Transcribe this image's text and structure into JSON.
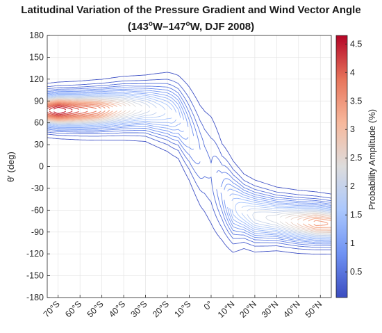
{
  "chart_data": {
    "type": "contour",
    "title_line1": "Latitudinal Variation of the Pressure Gradient and Wind Vector Angle",
    "title_line2_prefix": "(143",
    "title_sup1": "o",
    "title_line2_mid": "W–147",
    "title_sup2": "o",
    "title_line2_suffix": "W,  DJF 2008)",
    "ylabel": "θ' (deg)",
    "colorbar_label": "Probability Amplitude (%)",
    "x_range": [
      -75,
      55
    ],
    "y_range": [
      -180,
      180
    ],
    "x_ticks": [
      {
        "value": -70,
        "label": "70°S"
      },
      {
        "value": -60,
        "label": "60°S"
      },
      {
        "value": -50,
        "label": "50°S"
      },
      {
        "value": -40,
        "label": "40°S"
      },
      {
        "value": -30,
        "label": "30°S"
      },
      {
        "value": -20,
        "label": "20°S"
      },
      {
        "value": -10,
        "label": "10°S"
      },
      {
        "value": 0,
        "label": "0°"
      },
      {
        "value": 10,
        "label": "10°N"
      },
      {
        "value": 20,
        "label": "20°N"
      },
      {
        "value": 30,
        "label": "30°N"
      },
      {
        "value": 40,
        "label": "40°N"
      },
      {
        "value": 50,
        "label": "50°N"
      }
    ],
    "y_ticks": [
      180,
      150,
      120,
      90,
      60,
      30,
      0,
      -30,
      -60,
      -90,
      -120,
      -150,
      -180
    ],
    "colorbar_range": [
      0.05,
      4.65
    ],
    "colorbar_ticks": [
      0.5,
      1,
      1.5,
      2,
      2.5,
      3,
      3.5,
      4,
      4.5
    ],
    "colormap": [
      "#3b4cc0",
      "#6f92f3",
      "#aac7fd",
      "#dddcdc",
      "#f7b89c",
      "#e7745b",
      "#b40426"
    ],
    "grid": true,
    "ridge_center_deg": [
      {
        "lat": -75,
        "angle": 77
      },
      {
        "lat": -60,
        "angle": 77
      },
      {
        "lat": -50,
        "angle": 78
      },
      {
        "lat": -40,
        "angle": 80
      },
      {
        "lat": -30,
        "angle": 80
      },
      {
        "lat": -20,
        "angle": 75
      },
      {
        "lat": -15,
        "angle": 68
      },
      {
        "lat": -10,
        "angle": 45
      },
      {
        "lat": -5,
        "angle": 15
      },
      {
        "lat": 0,
        "angle": -5
      },
      {
        "lat": 5,
        "angle": -35
      },
      {
        "lat": 10,
        "angle": -55
      },
      {
        "lat": 20,
        "angle": -68
      },
      {
        "lat": 30,
        "angle": -72
      },
      {
        "lat": 40,
        "angle": -76
      },
      {
        "lat": 50,
        "angle": -78
      },
      {
        "lat": 55,
        "angle": -79
      }
    ],
    "peak_amplitude": [
      {
        "lat": -75,
        "value": 4.2
      },
      {
        "lat": -70,
        "value": 4.65
      },
      {
        "lat": -62,
        "value": 4.2
      },
      {
        "lat": -52,
        "value": 3.8
      },
      {
        "lat": -45,
        "value": 3.2
      },
      {
        "lat": -35,
        "value": 2.4
      },
      {
        "lat": -25,
        "value": 1.9
      },
      {
        "lat": -18,
        "value": 1.6
      },
      {
        "lat": -10,
        "value": 0.9
      },
      {
        "lat": -3,
        "value": 0.5
      },
      {
        "lat": 0,
        "value": 0.45
      },
      {
        "lat": 5,
        "value": 0.8
      },
      {
        "lat": 10,
        "value": 1.5
      },
      {
        "lat": 20,
        "value": 2.1
      },
      {
        "lat": 30,
        "value": 2.3
      },
      {
        "lat": 40,
        "value": 2.9
      },
      {
        "lat": 48,
        "value": 3.4
      },
      {
        "lat": 55,
        "value": 3.3
      }
    ],
    "ridge_half_width_deg": [
      {
        "lat": -75,
        "value": 14
      },
      {
        "lat": -50,
        "value": 16
      },
      {
        "lat": -30,
        "value": 19
      },
      {
        "lat": -15,
        "value": 26
      },
      {
        "lat": -5,
        "value": 38
      },
      {
        "lat": 0,
        "value": 45
      },
      {
        "lat": 5,
        "value": 34
      },
      {
        "lat": 15,
        "value": 22
      },
      {
        "lat": 30,
        "value": 18
      },
      {
        "lat": 55,
        "value": 16
      }
    ]
  }
}
